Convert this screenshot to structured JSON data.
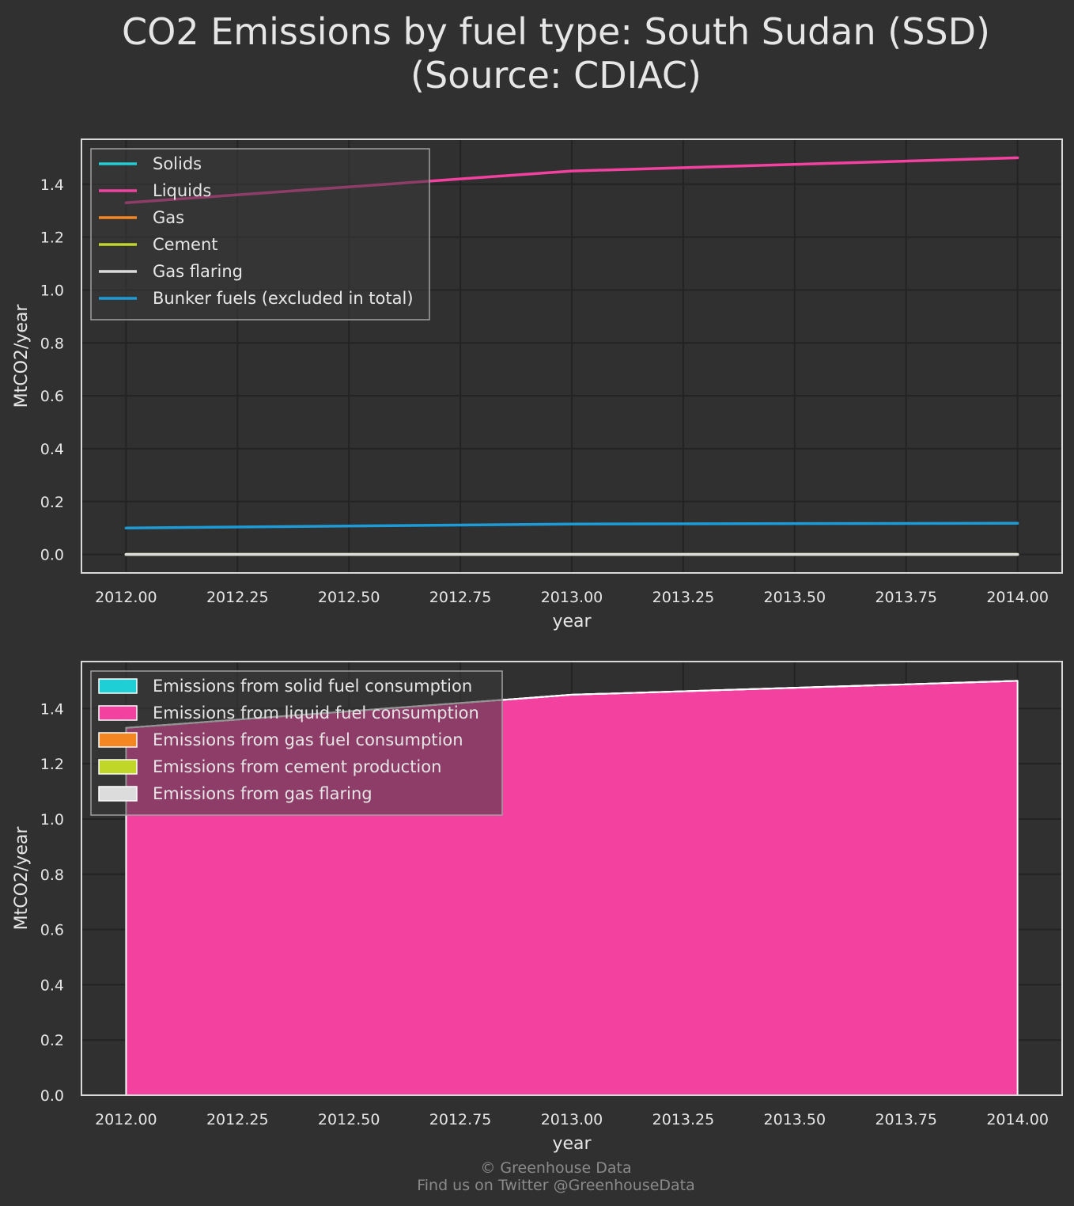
{
  "title_lines": [
    "CO2 Emissions by fuel type: South Sudan (SSD)",
    "(Source: CDIAC)"
  ],
  "footer": {
    "line1": "© Greenhouse Data",
    "line2": "Find us on Twitter @GreenhouseData"
  },
  "colors": {
    "background": "#303030",
    "solids": "#1ecfd6",
    "liquids": "#f2419f",
    "gas": "#f58723",
    "cement": "#c0d72a",
    "gas_flaring": "#dcdcdc",
    "bunker": "#1d9bd6"
  },
  "chart_data": [
    {
      "type": "line",
      "xlabel": "year",
      "ylabel": "MtCO2/year",
      "xlim": [
        2011.9,
        2014.1
      ],
      "ylim": [
        -0.07,
        1.57
      ],
      "xticks": [
        "2012.00",
        "2012.25",
        "2012.50",
        "2012.75",
        "2013.00",
        "2013.25",
        "2013.50",
        "2013.75",
        "2014.00"
      ],
      "yticks": [
        "0.0",
        "0.2",
        "0.4",
        "0.6",
        "0.8",
        "1.0",
        "1.2",
        "1.4"
      ],
      "grid": true,
      "legend": "upper-left",
      "x": [
        2012,
        2013,
        2014
      ],
      "series": [
        {
          "name": "Solids",
          "color": "#1ecfd6",
          "values": [
            0,
            0,
            0
          ]
        },
        {
          "name": "Liquids",
          "color": "#f2419f",
          "values": [
            1.33,
            1.45,
            1.5
          ]
        },
        {
          "name": "Gas",
          "color": "#f58723",
          "values": [
            0,
            0,
            0
          ]
        },
        {
          "name": "Cement",
          "color": "#c0d72a",
          "values": [
            0,
            0,
            0
          ]
        },
        {
          "name": "Gas flaring",
          "color": "#dcdcdc",
          "values": [
            0,
            0,
            0
          ]
        },
        {
          "name": "Bunker fuels (excluded in total)",
          "color": "#1d9bd6",
          "values": [
            0.1,
            0.115,
            0.118
          ]
        }
      ]
    },
    {
      "type": "area",
      "stacked": true,
      "xlabel": "year",
      "ylabel": "MtCO2/year",
      "xlim": [
        2011.9,
        2014.1
      ],
      "ylim": [
        0,
        1.57
      ],
      "xticks": [
        "2012.00",
        "2012.25",
        "2012.50",
        "2012.75",
        "2013.00",
        "2013.25",
        "2013.50",
        "2013.75",
        "2014.00"
      ],
      "yticks": [
        "0.0",
        "0.2",
        "0.4",
        "0.6",
        "0.8",
        "1.0",
        "1.2",
        "1.4"
      ],
      "grid": true,
      "legend": "upper-left",
      "x": [
        2012,
        2013,
        2014
      ],
      "series": [
        {
          "name": "Emissions from solid fuel consumption",
          "color": "#1ecfd6",
          "values": [
            0,
            0,
            0
          ]
        },
        {
          "name": "Emissions from liquid fuel consumption",
          "color": "#f2419f",
          "values": [
            1.33,
            1.45,
            1.5
          ]
        },
        {
          "name": "Emissions from gas fuel consumption",
          "color": "#f58723",
          "values": [
            0,
            0,
            0
          ]
        },
        {
          "name": "Emissions from cement production",
          "color": "#c0d72a",
          "values": [
            0,
            0,
            0
          ]
        },
        {
          "name": "Emissions from gas flaring",
          "color": "#dcdcdc",
          "values": [
            0,
            0,
            0
          ]
        }
      ]
    }
  ]
}
